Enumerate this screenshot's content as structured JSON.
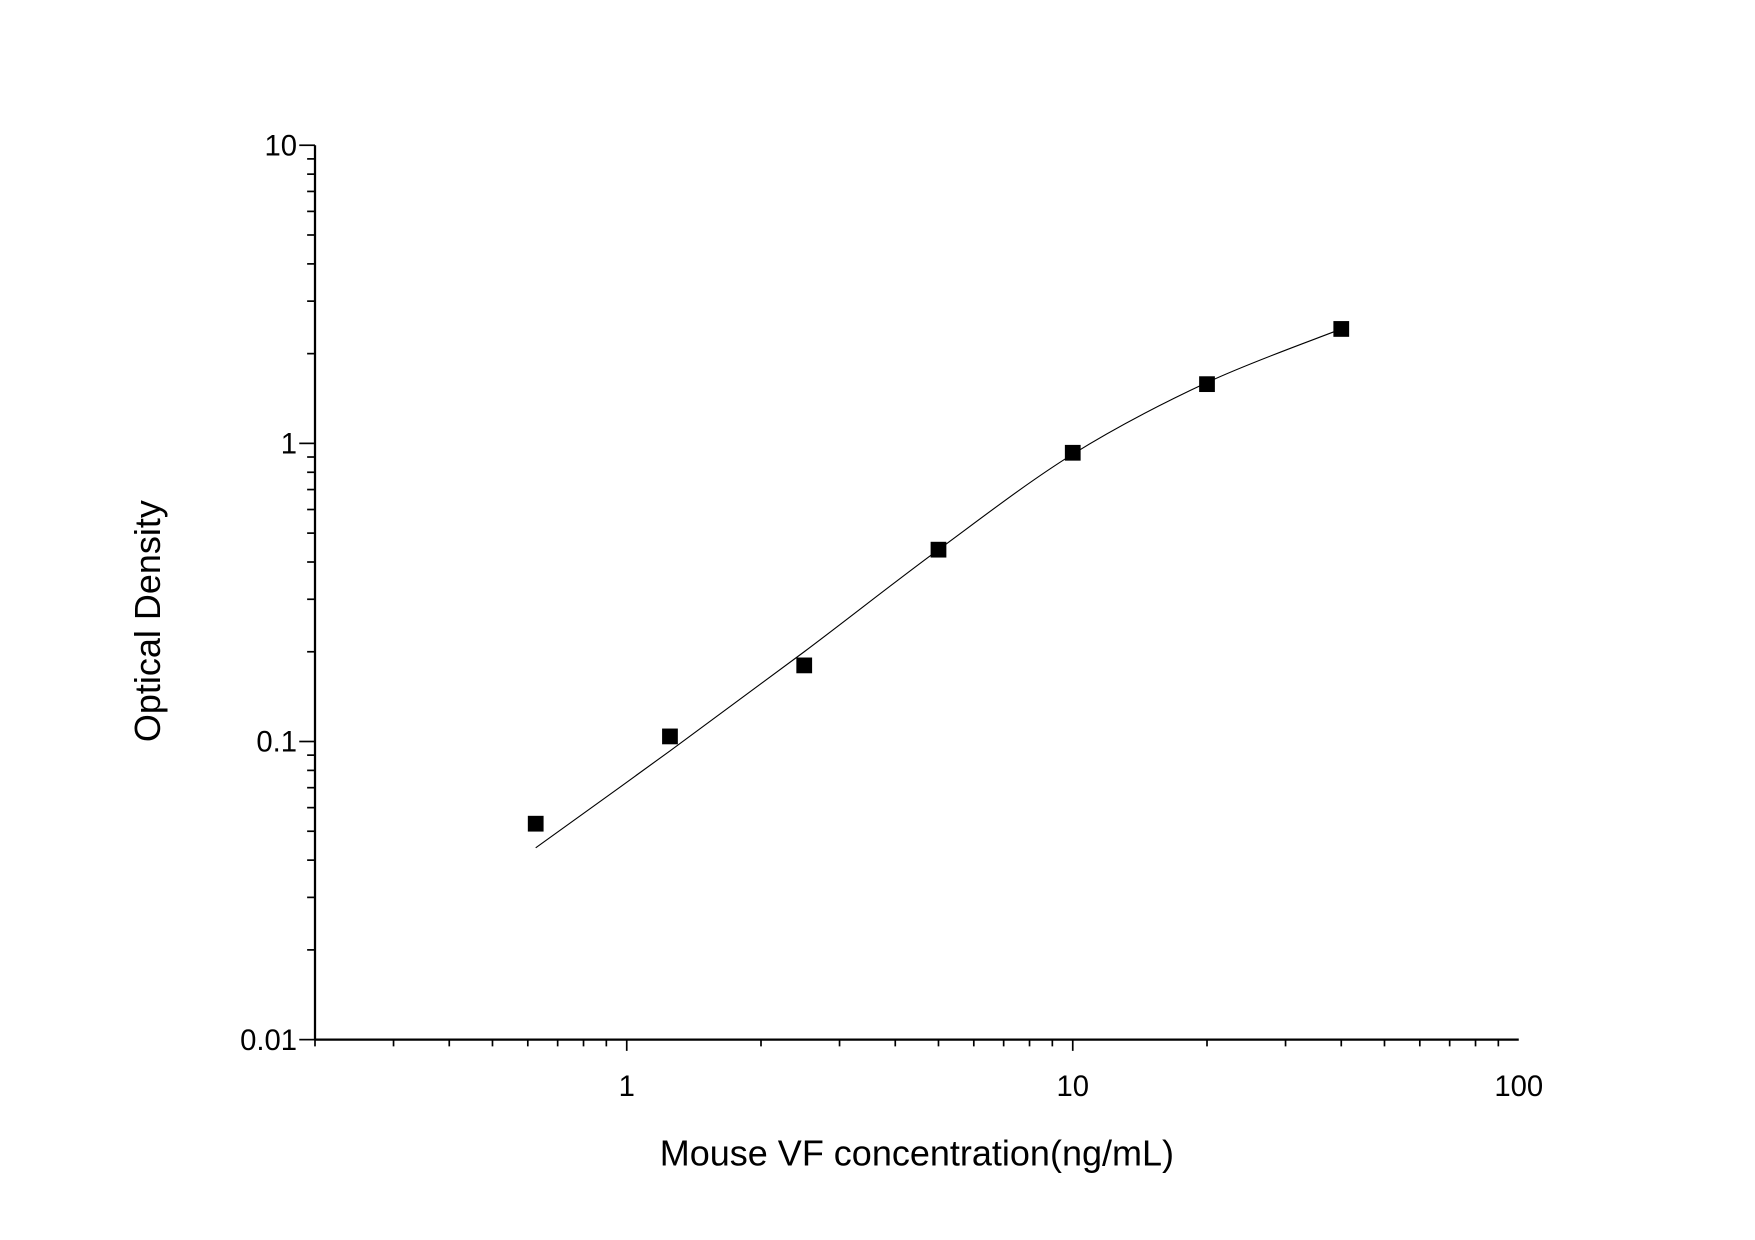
{
  "chart_data": {
    "type": "scatter",
    "title": "",
    "xlabel": "Mouse VF concentration(ng/mL)",
    "ylabel": "Optical Density",
    "x_scale": "log",
    "y_scale": "log",
    "xlim": [
      0.2,
      100
    ],
    "ylim": [
      0.01,
      10
    ],
    "x_ticks": [
      {
        "value": 1,
        "label": "1"
      },
      {
        "value": 10,
        "label": "10"
      },
      {
        "value": 100,
        "label": "100"
      }
    ],
    "y_ticks": [
      {
        "value": 0.01,
        "label": "0.01"
      },
      {
        "value": 0.1,
        "label": "0.1"
      },
      {
        "value": 1,
        "label": "1"
      },
      {
        "value": 10,
        "label": "10"
      }
    ],
    "grid": false,
    "marker": "square",
    "colors": {
      "marker": "#000000",
      "line": "#000000"
    },
    "points": {
      "x": [
        0.625,
        1.25,
        2.5,
        5,
        10,
        20,
        40
      ],
      "y": [
        0.053,
        0.104,
        0.18,
        0.44,
        0.93,
        1.58,
        2.42
      ]
    },
    "fit_curve": {
      "x": [
        0.625,
        1.25,
        2.5,
        5,
        10,
        20,
        40
      ],
      "y": [
        0.044,
        0.093,
        0.2,
        0.44,
        0.92,
        1.6,
        2.42
      ]
    }
  }
}
